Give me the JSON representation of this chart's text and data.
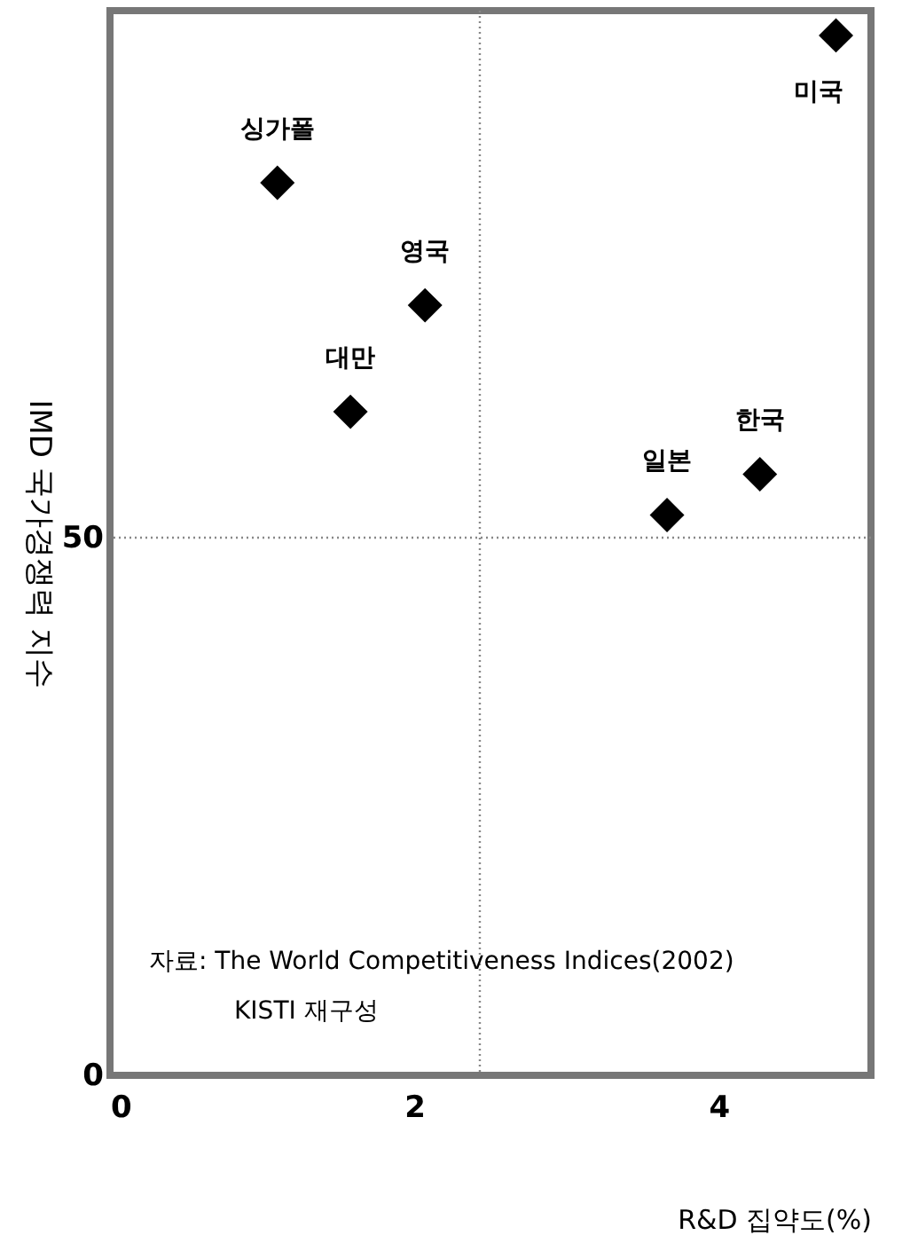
{
  "chart_data": {
    "type": "scatter",
    "xlabel": "R&D 집약도(%)",
    "ylabel": "IMD 국가경쟁력 지수",
    "x": [
      4.77,
      1.1,
      2.07,
      1.58,
      3.66,
      4.27
    ],
    "series": [
      {
        "color": "#000000",
        "values": [
          96.7,
          83.0,
          71.6,
          61.7,
          52.1,
          55.9
        ]
      }
    ],
    "marker": "diamond",
    "xlim": [
      0,
      5
    ],
    "xticks": [
      0,
      2,
      4
    ],
    "ylim": [
      0,
      99
    ],
    "yticks": [
      0,
      50
    ],
    "ref_lines": [
      {
        "axis": "x",
        "value": 2.43,
        "color": "#888888",
        "line_style": "dotted"
      },
      {
        "axis": "y",
        "value": 50,
        "color": "#888888",
        "line_style": "dotted"
      }
    ],
    "annotations": [
      {
        "text": "미국",
        "x": 4.77,
        "y": 96.7
      },
      {
        "text": "싱가폴",
        "x": 1.1,
        "y": 83.0
      },
      {
        "text": "영국",
        "x": 2.07,
        "y": 71.6
      },
      {
        "text": "대만",
        "x": 1.58,
        "y": 61.7
      },
      {
        "text": "일본",
        "x": 3.66,
        "y": 52.1
      },
      {
        "text": "한국",
        "x": 4.27,
        "y": 55.9
      },
      "자료: The World Competitiveness Indices(2002)",
      "KISTI 재구성"
    ]
  }
}
